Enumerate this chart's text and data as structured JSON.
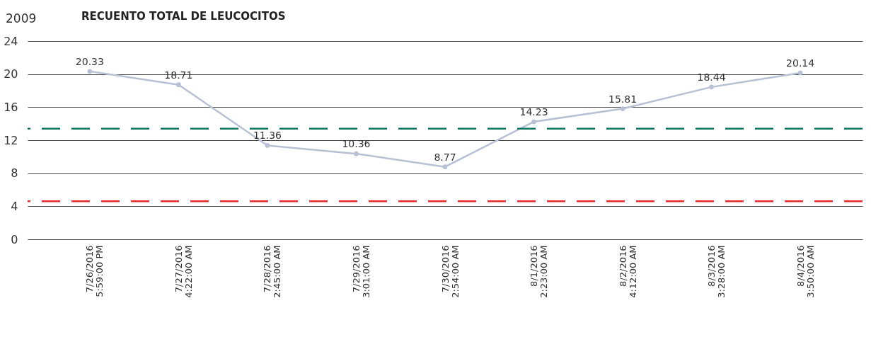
{
  "chart_data": {
    "type": "line",
    "title": "RECUENTO TOTAL DE LEUCOCITOS",
    "annotations": [
      "2009"
    ],
    "categories": [
      "7/26/2016 5:59:00 PM",
      "7/27/2016 4:22:00 AM",
      "7/28/2016 2:45:00 AM",
      "7/29/2016 3:01:00 AM",
      "7/30/2016 2:54:00 AM",
      "8/1/2016 2:23:00 AM",
      "8/2/2016 4:12:00 AM",
      "8/3/2016 3:28:00 AM",
      "8/4/2016 3:50:00 AM"
    ],
    "series": [
      {
        "color": "#b8c1d3",
        "values": [
          20.33,
          18.71,
          11.36,
          10.36,
          8.77,
          14.23,
          15.81,
          18.44,
          20.14
        ]
      }
    ],
    "ylim": [
      0,
      24
    ],
    "yticks": [
      0,
      4,
      8,
      12,
      16,
      20,
      24
    ],
    "ref_lines": [
      {
        "axis": "y",
        "value": 13.4,
        "color": "#0f7566",
        "line_style": "dashed"
      },
      {
        "axis": "y",
        "value": 4.6,
        "color": "#e8282b",
        "line_style": "dashed"
      }
    ],
    "grid": "y",
    "data_labels": true,
    "marker": "circle",
    "line_style": "solid"
  }
}
